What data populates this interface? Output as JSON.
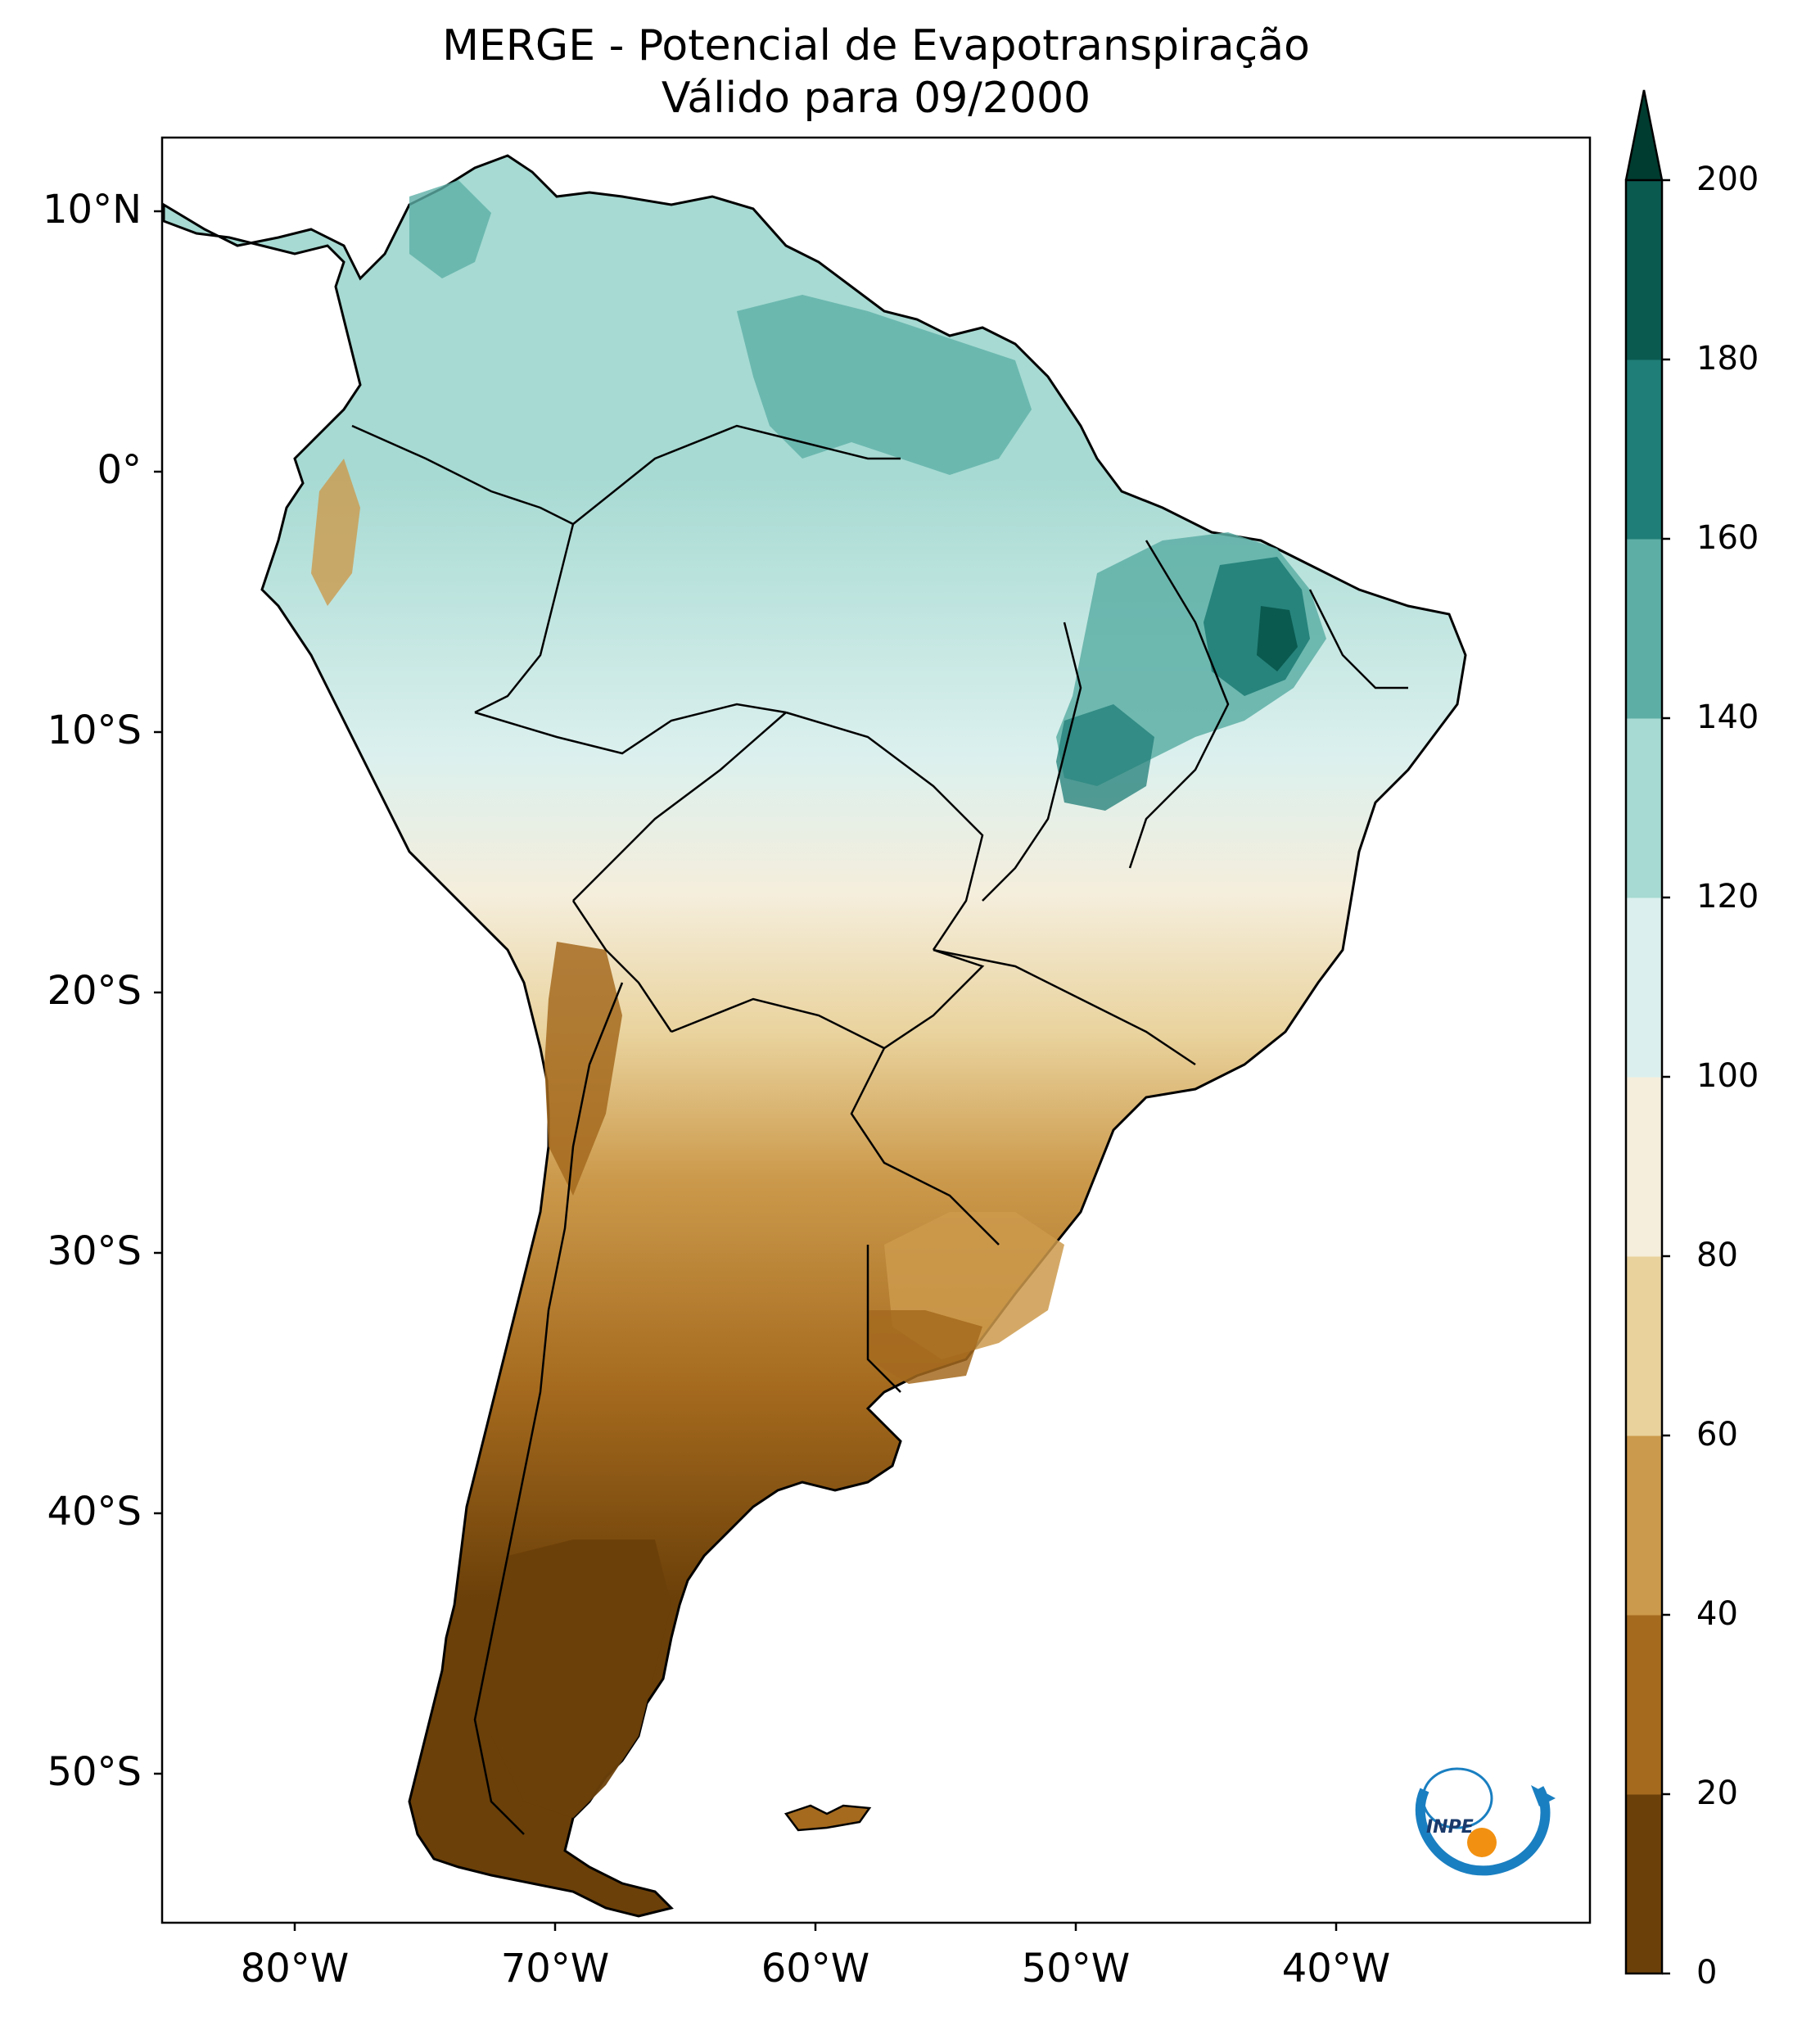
{
  "title": "MERGE - Potencial de Evapotranspiração",
  "subtitle": "Válido para 09/2000",
  "lat_labels": [
    "10°N",
    "0°",
    "10°S",
    "20°S",
    "30°S",
    "40°S",
    "50°S"
  ],
  "lon_labels": [
    "80°W",
    "70°W",
    "60°W",
    "50°W",
    "40°W"
  ],
  "colorbar": {
    "ticks": [
      "0",
      "20",
      "40",
      "60",
      "80",
      "100",
      "120",
      "140",
      "160",
      "180",
      "200"
    ],
    "colors": [
      "#6b4009",
      "#a56a1e",
      "#cc9a4c",
      "#e9d29c",
      "#f5eedc",
      "#dbf0ee",
      "#a6dad2",
      "#5dafa6",
      "#1f7e77",
      "#0a5a50",
      "#003c30"
    ],
    "extend": "max"
  },
  "logo_text": "INPE"
}
